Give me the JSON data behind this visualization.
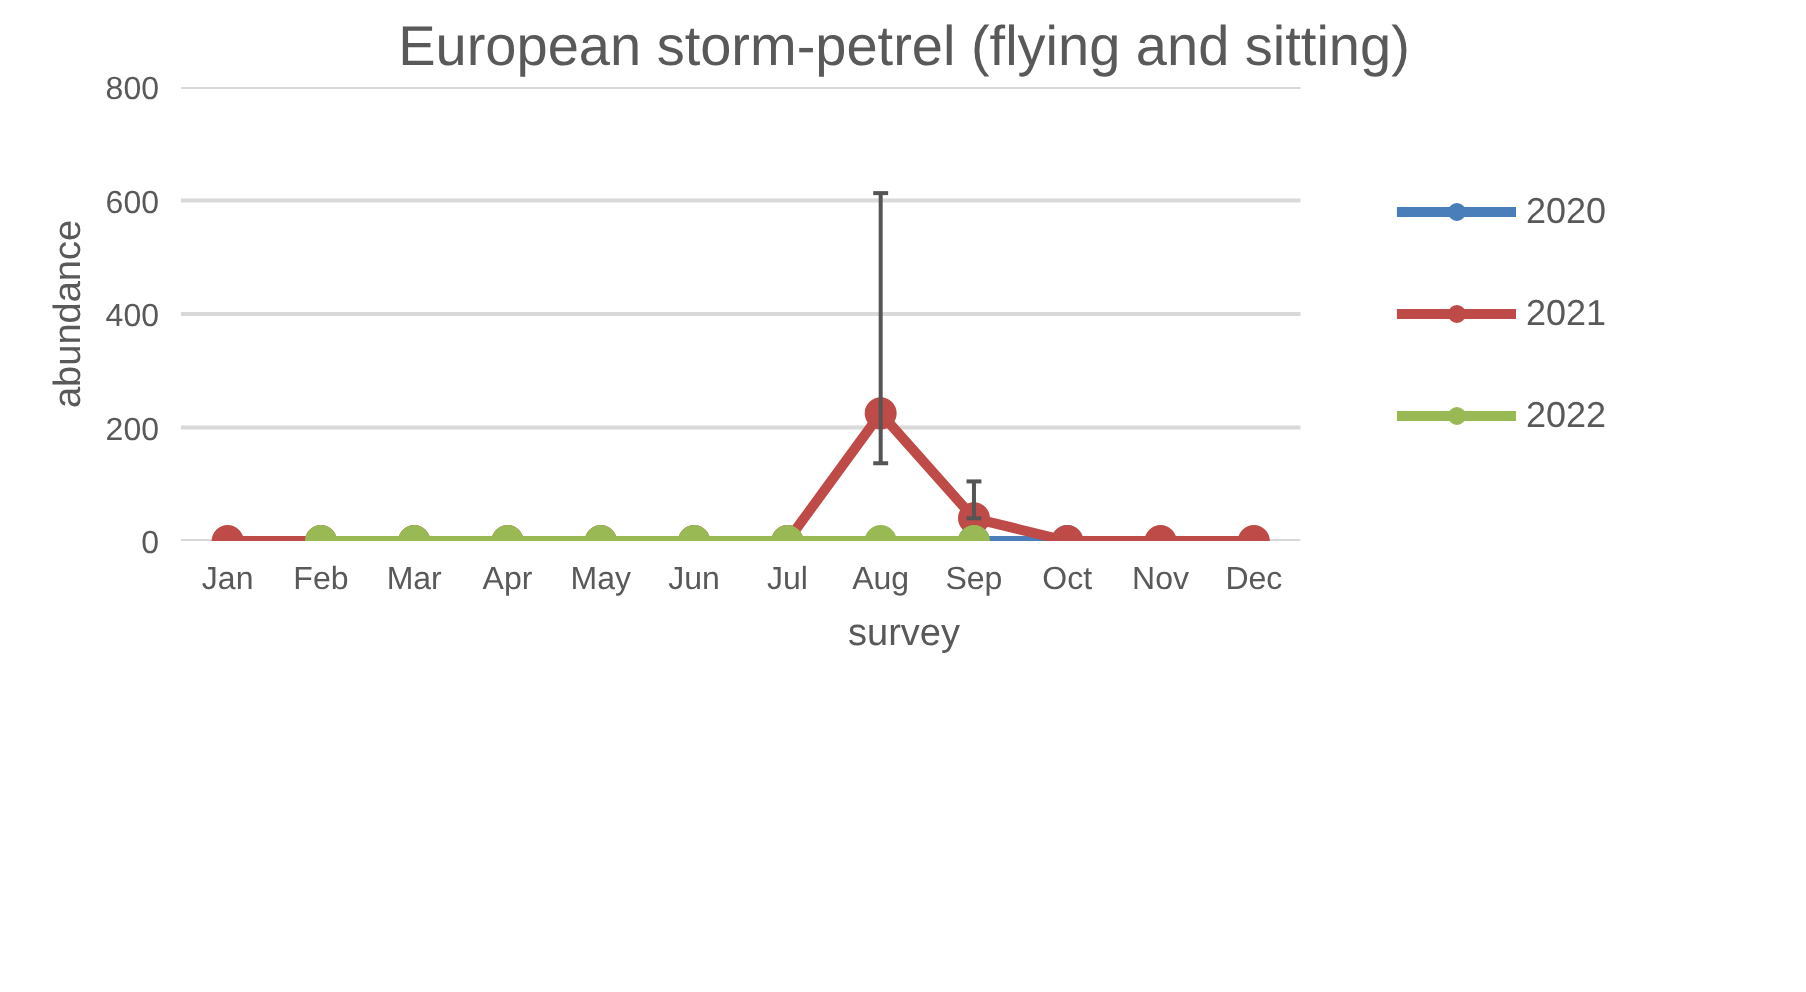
{
  "chart_data": {
    "type": "line",
    "title": "European storm-petrel (flying and sitting)",
    "xlabel": "survey",
    "ylabel": "abundance",
    "categories": [
      "Jan",
      "Feb",
      "Mar",
      "Apr",
      "May",
      "Jun",
      "Jul",
      "Aug",
      "Sep",
      "Oct",
      "Nov",
      "Dec"
    ],
    "series": [
      {
        "name": "2020",
        "color": "#4a7ebb",
        "values": [
          null,
          null,
          null,
          null,
          null,
          null,
          null,
          null,
          0,
          0,
          null,
          null
        ]
      },
      {
        "name": "2021",
        "color": "#be4b48",
        "values": [
          0,
          0,
          0,
          0,
          0,
          0,
          0,
          225,
          40,
          0,
          0,
          0
        ],
        "errors": [
          null,
          null,
          null,
          null,
          null,
          null,
          null,
          [
            137,
            613
          ],
          [
            40,
            105
          ],
          null,
          null,
          null
        ]
      },
      {
        "name": "2022",
        "color": "#98b954",
        "values": [
          null,
          0,
          0,
          0,
          0,
          0,
          0,
          0,
          0,
          null,
          null,
          null
        ]
      }
    ],
    "ylim": [
      0,
      800
    ],
    "yticks": [
      0,
      200,
      400,
      600,
      800
    ],
    "grid": "y",
    "legend": "right",
    "marker": "circle",
    "line_style": "solid"
  }
}
